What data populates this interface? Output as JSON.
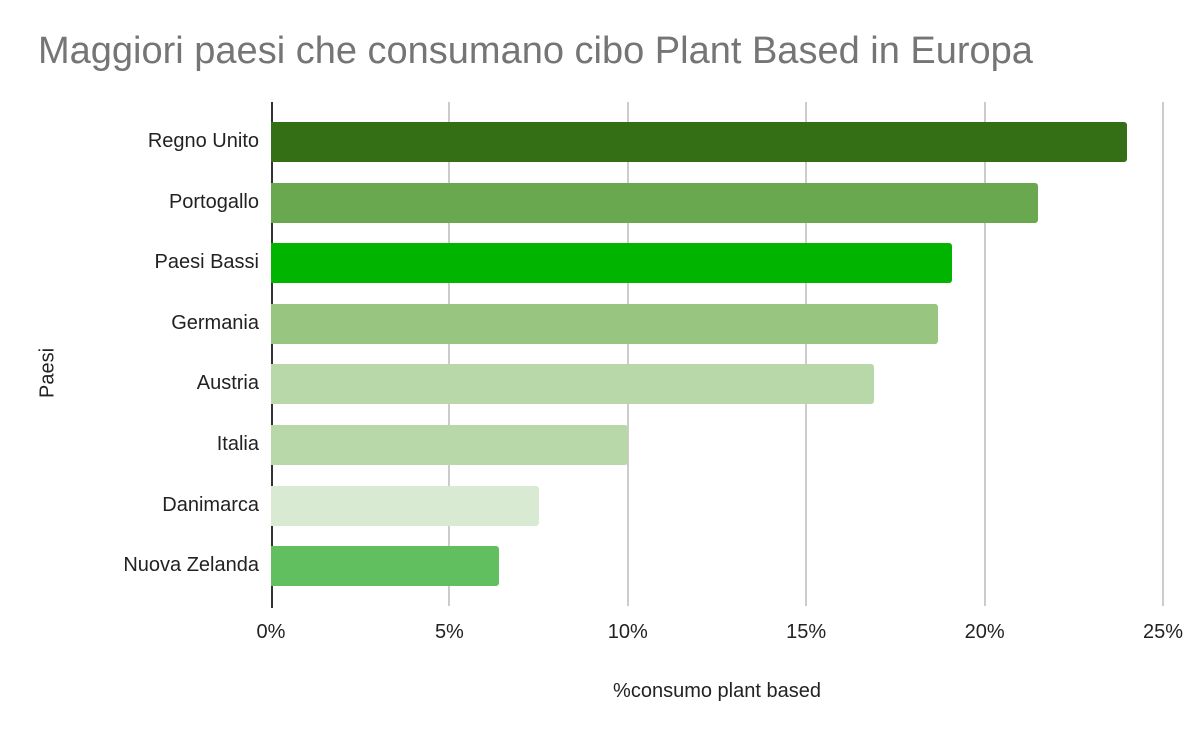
{
  "chart_data": {
    "type": "bar",
    "orientation": "horizontal",
    "title": "Maggiori paesi che consumano cibo Plant Based in Europa",
    "xlabel": "%consumo plant based",
    "ylabel": "Paesi",
    "xlim": [
      0,
      25
    ],
    "x_ticks": [
      "0%",
      "5%",
      "10%",
      "15%",
      "20%",
      "25%"
    ],
    "grid": true,
    "legend": "none",
    "categories": [
      "Regno Unito",
      "Portogallo",
      "Paesi Bassi",
      "Germania",
      "Austria",
      "Italia",
      "Danimarca",
      "Nuova Zelanda"
    ],
    "values": [
      24,
      21.5,
      19.1,
      18.7,
      16.9,
      10,
      7.5,
      6.4
    ],
    "colors": [
      "#346f15",
      "#6aa84f",
      "#00b400",
      "#98c57f",
      "#b8d8aa",
      "#b8d8aa",
      "#d9ead3",
      "#62bf5f"
    ]
  }
}
